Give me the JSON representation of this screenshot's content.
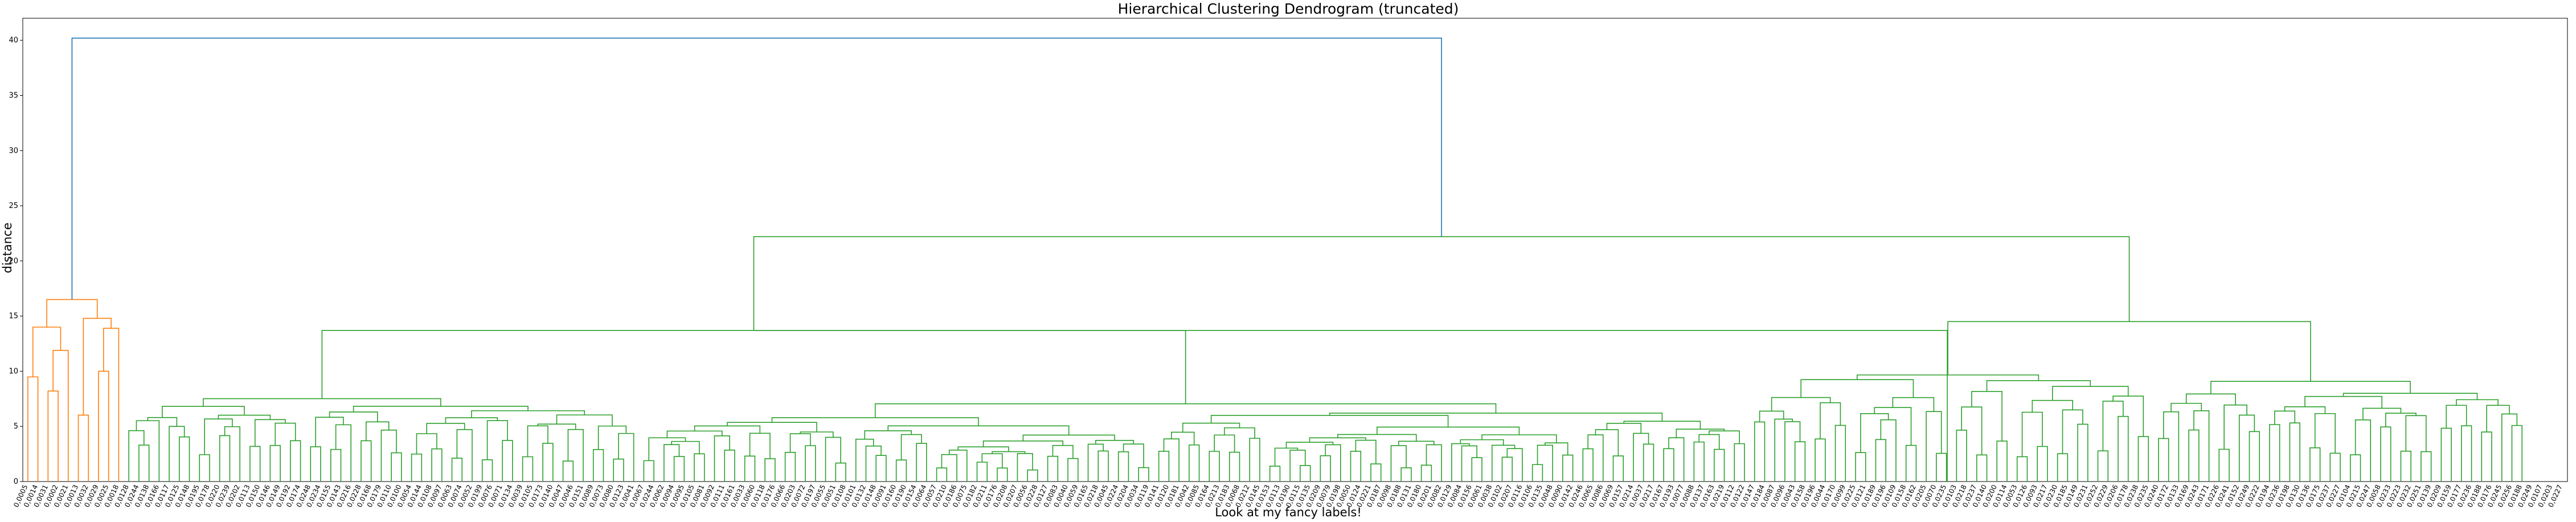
{
  "chart_data": {
    "type": "dendrogram",
    "title": "Hierarchical Clustering Dendrogram (truncated)",
    "xlabel": "Look at my fancy labels!",
    "ylabel": "distance",
    "ylim": [
      0,
      42
    ],
    "yticks": [
      0,
      5,
      10,
      15,
      20,
      25,
      30,
      35,
      40
    ],
    "grid": false,
    "colors": {
      "root": "#1f77b4",
      "cluster_1": "#ff7f0e",
      "cluster_2": "#2ca02c"
    },
    "leaf_labels": [
      "0,0005",
      "0,0014",
      "0,0031",
      "0,0002",
      "0,0021",
      "0,0013",
      "0,0032",
      "0,0029",
      "0,0025",
      "0,0018",
      "0,0128",
      "0,0244",
      "0,0138",
      "0,0166",
      "0,0117",
      "0,0125",
      "0,0148",
      "0,0195",
      "0,0178",
      "0,0220",
      "0,0239",
      "0,0202",
      "0,0113",
      "0,0150",
      "0,0146",
      "0,0149",
      "0,0192",
      "0,0174",
      "0,0248",
      "0,0234",
      "0,0155",
      "0,0143",
      "0,0216",
      "0,0228",
      "0,0168",
      "0,0179",
      "0,0110",
      "0,0100",
      "0,0054",
      "0,0144",
      "0,0108",
      "0,0097",
      "0,0063",
      "0,0074",
      "0,0052",
      "0,0199",
      "0,0076",
      "0,0071",
      "0,0134",
      "0,0039",
      "0,0105",
      "0,0173",
      "0,0140",
      "0,0047",
      "0,0046",
      "0,0151",
      "0,0089",
      "0,0073",
      "0,0080",
      "0,0123",
      "0,0041",
      "0,0067",
      "0,0244",
      "0,0062",
      "0,0094",
      "0,0095",
      "0,0105",
      "0,0081",
      "0,0092",
      "0,0111",
      "0,0161",
      "0,0033",
      "0,0060",
      "0,0118",
      "0,0176",
      "0,0066",
      "0,0203",
      "0,0072",
      "0,0197",
      "0,0055",
      "0,0051",
      "0,0108",
      "0,0101",
      "0,0132",
      "0,0148",
      "0,0091",
      "0,0160",
      "0,0190",
      "0,0154",
      "0,0064",
      "0,0057",
      "0,0210",
      "0,0186",
      "0,0075",
      "0,0182",
      "0,0211",
      "0,0176",
      "0,0208",
      "0,0207",
      "0,0056",
      "0,0228",
      "0,0127",
      "0,0083",
      "0,0040",
      "0,0059",
      "0,0165",
      "0,0218",
      "0,0045",
      "0,0224",
      "0,0204",
      "0,0034",
      "0,0119",
      "0,0141",
      "0,0120",
      "0,0181",
      "0,0042",
      "0,0085",
      "0,0164",
      "0,0213",
      "0,0183",
      "0,0068",
      "0,0212",
      "0,0145",
      "0,0153",
      "0,0113",
      "0,0190",
      "0,0115",
      "0,0135",
      "0,0209",
      "0,0079",
      "0,0198",
      "0,0050",
      "0,0124",
      "0,0221",
      "0,0187",
      "0,0098",
      "0,0188",
      "0,0131",
      "0,0180",
      "0,0201",
      "0,0082",
      "0,0129",
      "0,0084",
      "0,0156",
      "0,0061",
      "0,0038",
      "0,0102",
      "0,0207",
      "0,0116",
      "0,0106",
      "0,0135",
      "0,0048",
      "0,0090",
      "0,0142",
      "0,0246",
      "0,0065",
      "0,0086",
      "0,0069",
      "0,0157",
      "0,0214",
      "0,0037",
      "0,0217",
      "0,0167",
      "0,0193",
      "0,0077",
      "0,0088",
      "0,0137",
      "0,0163",
      "0,0219",
      "0,0112",
      "0,0122",
      "0,0147",
      "0,0184",
      "0,0087",
      "0,0096",
      "0,0043",
      "0,0158",
      "0,0196",
      "0,0044",
      "0,0170",
      "0,0099",
      "0,0225",
      "0,0121",
      "0,0189",
      "0,0196",
      "0,0109",
      "0,0158",
      "0,0162",
      "0,0205",
      "0,0070",
      "0,0235",
      "0,0103",
      "0,0218",
      "0,0237",
      "0,0140",
      "0,0200",
      "0,0114",
      "0,0053",
      "0,0126",
      "0,0093",
      "0,0217",
      "0,0230",
      "0,0185",
      "0,0149",
      "0,0231",
      "0,0252",
      "0,0229",
      "0,0206",
      "0,0178",
      "0,0238",
      "0,0235",
      "0,0240",
      "0,0172",
      "0,0133",
      "0,0169",
      "0,0243",
      "0,0171",
      "0,0226",
      "0,0241",
      "0,0152",
      "0,0249",
      "0,0222",
      "0,0194",
      "0,0236",
      "0,0198",
      "0,0130",
      "0,0136",
      "0,0175",
      "0,0237",
      "0,0227",
      "0,0104",
      "0,0215",
      "0,0247",
      "0,0058",
      "0,0233",
      "0,0223",
      "0,0232",
      "0,0251",
      "0,0139",
      "0,0209",
      "0,0159",
      "0,0177",
      "0,0236",
      "0,0188",
      "0,0176",
      "0,0245",
      "0,0256",
      "0,0188",
      "0,0249",
      "0,0107",
      "0,0203",
      "0,0227"
    ]
  }
}
